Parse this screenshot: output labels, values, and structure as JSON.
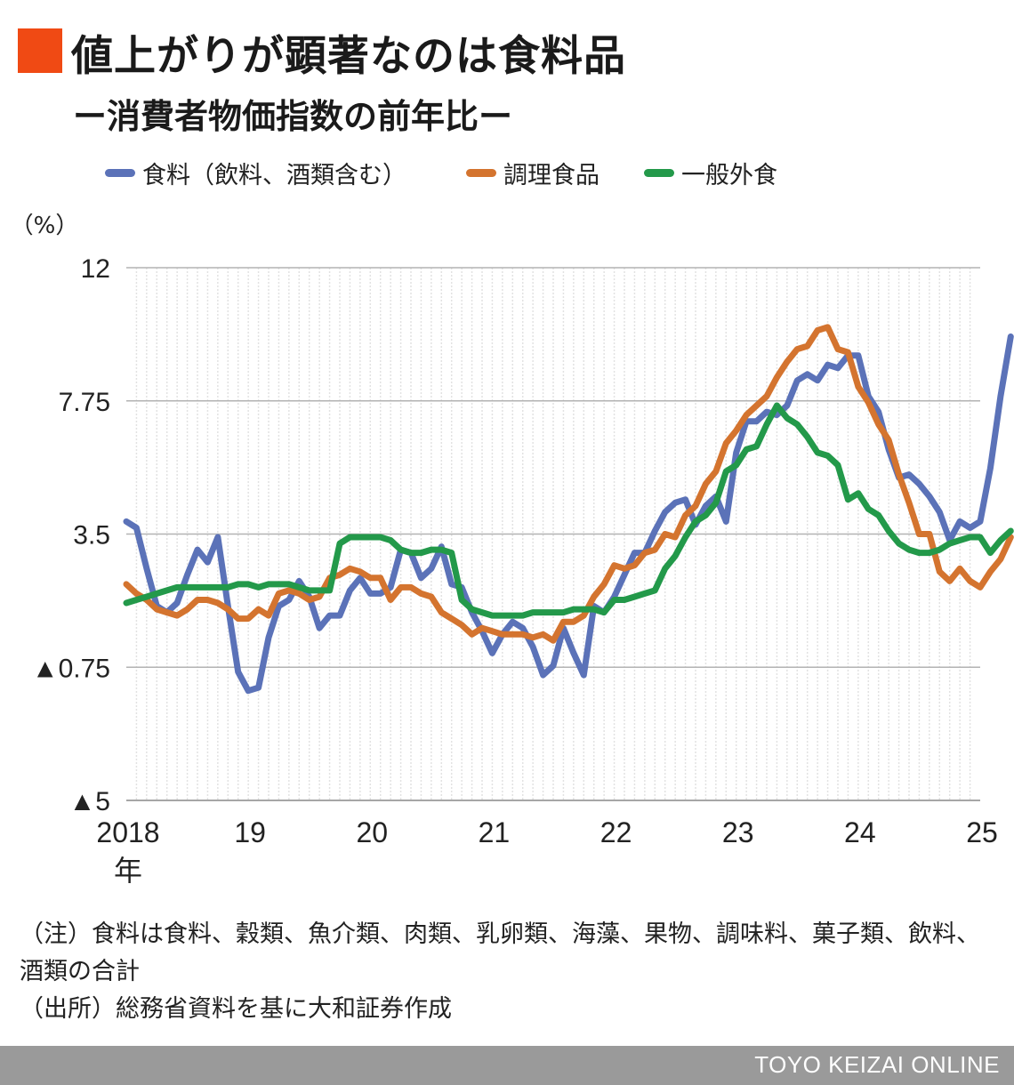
{
  "header": {
    "title": "値上がりが顕著なのは食料品",
    "subtitle": "ー消費者物価指数の前年比ー"
  },
  "chart_data": {
    "type": "line",
    "title": "値上がりが顕著なのは食料品",
    "subtitle": "ー消費者物価指数の前年比ー",
    "unit_label": "（%）",
    "y_ticks": [
      {
        "value": 12,
        "label": "12"
      },
      {
        "value": 7.75,
        "label": "7.75"
      },
      {
        "value": 3.5,
        "label": "3.5"
      },
      {
        "value": -0.75,
        "label": "▲0.75"
      },
      {
        "value": -5,
        "label": "▲5"
      }
    ],
    "ylim": [
      -5,
      12
    ],
    "x_tick_labels": [
      "2018",
      "19",
      "20",
      "21",
      "22",
      "23",
      "24",
      "25"
    ],
    "x_first_suffix": "年",
    "x_range": [
      "2018-01",
      "2025-01"
    ],
    "grid": true,
    "legend_position": "top",
    "series": [
      {
        "name": "食料（飲料、酒類含む）",
        "color": "#5b72b8",
        "values": [
          3.9,
          3.7,
          2.4,
          1.2,
          1.0,
          1.3,
          2.2,
          3.0,
          2.6,
          3.4,
          1.2,
          -0.9,
          -1.5,
          -1.4,
          0.2,
          1.2,
          1.4,
          2.0,
          1.5,
          0.5,
          0.9,
          0.9,
          1.7,
          2.1,
          1.6,
          1.6,
          1.8,
          3.0,
          2.9,
          2.1,
          2.4,
          3.1,
          1.9,
          1.8,
          1.0,
          0.4,
          -0.3,
          0.3,
          0.7,
          0.5,
          -0.1,
          -1.0,
          -0.7,
          0.5,
          -0.3,
          -1.0,
          1.2,
          1.0,
          1.5,
          2.2,
          2.9,
          2.9,
          3.6,
          4.2,
          4.5,
          4.6,
          3.8,
          4.4,
          4.7,
          3.9,
          6.1,
          7.1,
          7.1,
          7.4,
          7.3,
          7.6,
          8.4,
          8.6,
          8.4,
          8.9,
          8.8,
          9.2,
          9.2,
          7.9,
          7.4,
          6.2,
          5.3,
          5.4,
          5.1,
          4.7,
          4.2,
          3.3,
          3.9,
          3.7,
          3.9,
          5.6,
          7.9,
          9.8
        ]
      },
      {
        "name": "調理食品",
        "color": "#d4742f",
        "values": [
          1.9,
          1.6,
          1.4,
          1.1,
          1.0,
          0.9,
          1.1,
          1.4,
          1.4,
          1.3,
          1.1,
          0.8,
          0.8,
          1.1,
          0.9,
          1.6,
          1.7,
          1.6,
          1.4,
          1.5,
          2.1,
          2.2,
          2.4,
          2.3,
          2.1,
          2.1,
          1.4,
          1.8,
          1.8,
          1.6,
          1.5,
          1.0,
          0.8,
          0.6,
          0.3,
          0.5,
          0.4,
          0.3,
          0.3,
          0.3,
          0.2,
          0.3,
          0.1,
          0.7,
          0.7,
          0.9,
          1.5,
          1.9,
          2.5,
          2.4,
          2.5,
          2.9,
          3.0,
          3.5,
          3.4,
          4.1,
          4.4,
          5.1,
          5.5,
          6.4,
          6.8,
          7.3,
          7.6,
          7.9,
          8.5,
          9.0,
          9.4,
          9.5,
          10.0,
          10.1,
          9.4,
          9.3,
          8.2,
          7.7,
          7.0,
          6.5,
          5.4,
          4.5,
          3.5,
          3.5,
          2.3,
          2.0,
          2.4,
          2.0,
          1.8,
          2.3,
          2.7,
          3.4
        ]
      },
      {
        "name": "一般外食",
        "color": "#23994a",
        "values": [
          1.3,
          1.4,
          1.5,
          1.6,
          1.7,
          1.8,
          1.8,
          1.8,
          1.8,
          1.8,
          1.8,
          1.9,
          1.9,
          1.8,
          1.9,
          1.9,
          1.9,
          1.8,
          1.7,
          1.7,
          1.7,
          3.2,
          3.4,
          3.4,
          3.4,
          3.4,
          3.3,
          3.0,
          2.9,
          2.9,
          3.0,
          3.0,
          2.9,
          1.4,
          1.1,
          1.0,
          0.9,
          0.9,
          0.9,
          0.9,
          1.0,
          1.0,
          1.0,
          1.0,
          1.1,
          1.1,
          1.1,
          1.0,
          1.4,
          1.4,
          1.5,
          1.6,
          1.7,
          2.4,
          2.8,
          3.4,
          3.9,
          4.1,
          4.5,
          5.5,
          5.7,
          6.2,
          6.3,
          7.0,
          7.6,
          7.2,
          7.0,
          6.6,
          6.1,
          6.0,
          5.7,
          4.6,
          4.8,
          4.3,
          4.1,
          3.6,
          3.2,
          3.0,
          2.9,
          2.9,
          3.0,
          3.2,
          3.3,
          3.4,
          3.4,
          2.9,
          3.3,
          3.6
        ]
      }
    ]
  },
  "notes": {
    "note": "（注）食料は食料、穀類、魚介類、肉類、乳卵類、海藻、果物、調味料、菓子類、飲料、酒類の合計",
    "source": "（出所）総務省資料を基に大和証券作成"
  },
  "footer": {
    "brand": "TOYO KEIZAI ONLINE"
  },
  "colors": {
    "title_mark": "#f04a14",
    "footer_bg": "#9a9a9a"
  }
}
